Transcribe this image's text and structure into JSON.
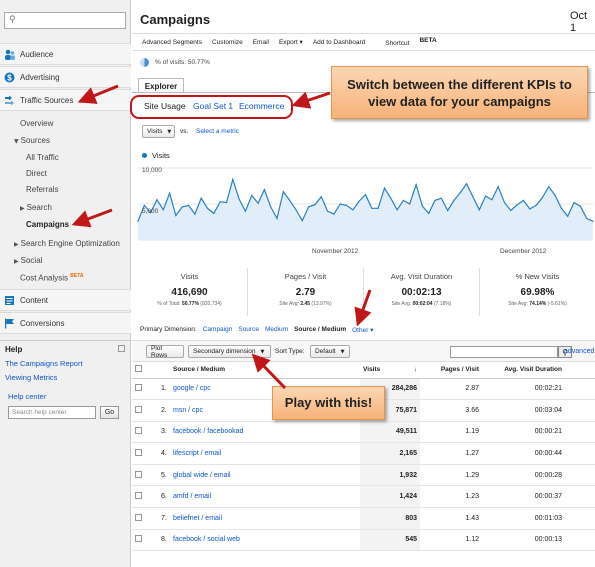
{
  "sidebar": {
    "search_placeholder": "",
    "sections": {
      "audience": "Audience",
      "advertising": "Advertising",
      "traffic_sources": "Traffic Sources",
      "content": "Content",
      "conversions": "Conversions"
    },
    "traffic": {
      "overview": "Overview",
      "sources": "Sources",
      "all_traffic": "All Traffic",
      "direct": "Direct",
      "referrals": "Referrals",
      "search": "Search",
      "campaigns": "Campaigns",
      "seo": "Search Engine Optimization",
      "social": "Social",
      "cost_analysis": "Cost Analysis",
      "beta": "BETA"
    },
    "help": {
      "title": "Help",
      "link1": "The Campaigns Report",
      "link2": "Viewing Metrics",
      "center": "Help center",
      "search_placeholder": "Search help center",
      "go": "Go"
    }
  },
  "header": {
    "title": "Campaigns",
    "date": "Oct 1"
  },
  "toolbar": {
    "items": [
      "Advanced Segments",
      "Customize",
      "Email",
      "Export ▾",
      "Add to Dashboard",
      "Shortcut"
    ],
    "beta": "BETA"
  },
  "visits_pct": "% of visits: 50.77%",
  "explorer_tab": "Explorer",
  "kpi_tabs": [
    "Site Usage",
    "Goal Set 1",
    "Ecommerce"
  ],
  "callouts": {
    "kpi": "Switch between the different KPIs to view data for your campaigns",
    "play": "Play with this!"
  },
  "metric_select": "Visits",
  "vs_label": "vs.",
  "select_metric": "Select a metric",
  "chart_data": {
    "type": "line",
    "series": [
      {
        "name": "Visits",
        "values": [
          2600,
          4800,
          3800,
          5600,
          4200,
          6500,
          3400,
          4600,
          4800,
          3600,
          5800,
          4400,
          3700,
          5300,
          5200,
          8400,
          5700,
          4000,
          6200,
          5100,
          7000,
          4600,
          3000,
          6700,
          5500,
          4200,
          2700,
          4600,
          4900,
          6000,
          4000,
          3600,
          5000,
          4800,
          4200,
          5400,
          6300,
          4400,
          4400,
          7200,
          5800,
          4200,
          5500,
          5000,
          7700,
          4700,
          3700,
          5500,
          5800,
          4100,
          5500,
          6600,
          7800,
          6000,
          4200,
          6100,
          5600,
          7400,
          5200,
          4100,
          4900,
          5500,
          4300,
          4800,
          5900,
          7400,
          6200,
          4400,
          3300,
          5200,
          4700,
          3000,
          2600
        ]
      }
    ],
    "y_ticks": [
      "10,000",
      "5,000"
    ],
    "x_labels": [
      "November 2012",
      "December 2012"
    ],
    "ylim": [
      0,
      10000
    ]
  },
  "summary": [
    {
      "label": "Visits",
      "value": "416,690",
      "sub_pre": "% of Total: ",
      "sub_bold": "50.77%",
      "sub_post": " (820,734)"
    },
    {
      "label": "Pages / Visit",
      "value": "2.79",
      "sub_pre": "Site Avg: ",
      "sub_bold": "2.45",
      "sub_post": " (13.97%)"
    },
    {
      "label": "Avg. Visit Duration",
      "value": "00:02:13",
      "sub_pre": "Site Avg: ",
      "sub_bold": "00:02:04",
      "sub_post": " (7.18%)"
    },
    {
      "label": "% New Visits",
      "value": "69.98%",
      "sub_pre": "Site Avg: ",
      "sub_bold": "74.14%",
      "sub_post": " (-5.61%)"
    }
  ],
  "primary_dimension": {
    "label": "Primary Dimension:",
    "options": [
      "Campaign",
      "Source",
      "Medium",
      "Source / Medium",
      "Other ▾"
    ]
  },
  "controls": {
    "plot_rows": "Plot Rows",
    "secondary": "Secondary dimension",
    "sort_label": "Sort Type:",
    "sort_value": "Default",
    "advanced": "advanced"
  },
  "table": {
    "headers": [
      "Source / Medium",
      "Visits",
      "Pages / Visit",
      "Avg. Visit Duration"
    ],
    "rows": [
      {
        "n": "1.",
        "src": "google / cpc",
        "visits": "284,286",
        "ppv": "2.87",
        "dur": "00:02:21"
      },
      {
        "n": "2.",
        "src": "msn / cpc",
        "visits": "75,871",
        "ppv": "3.66",
        "dur": "00:03:04"
      },
      {
        "n": "3.",
        "src": "facebook / facebookad",
        "visits": "49,511",
        "ppv": "1.19",
        "dur": "00:00:21"
      },
      {
        "n": "4.",
        "src": "lifescript / email",
        "visits": "2,165",
        "ppv": "1.27",
        "dur": "00:00:44"
      },
      {
        "n": "5.",
        "src": "global wide / email",
        "visits": "1,932",
        "ppv": "1.29",
        "dur": "00:00:28"
      },
      {
        "n": "6.",
        "src": "amfd / email",
        "visits": "1,424",
        "ppv": "1.23",
        "dur": "00:00:37"
      },
      {
        "n": "7.",
        "src": "beliefnet / email",
        "visits": "803",
        "ppv": "1.43",
        "dur": "00:01:03"
      },
      {
        "n": "8.",
        "src": "facebook / social web",
        "visits": "545",
        "ppv": "1.12",
        "dur": "00:00:13"
      }
    ]
  }
}
